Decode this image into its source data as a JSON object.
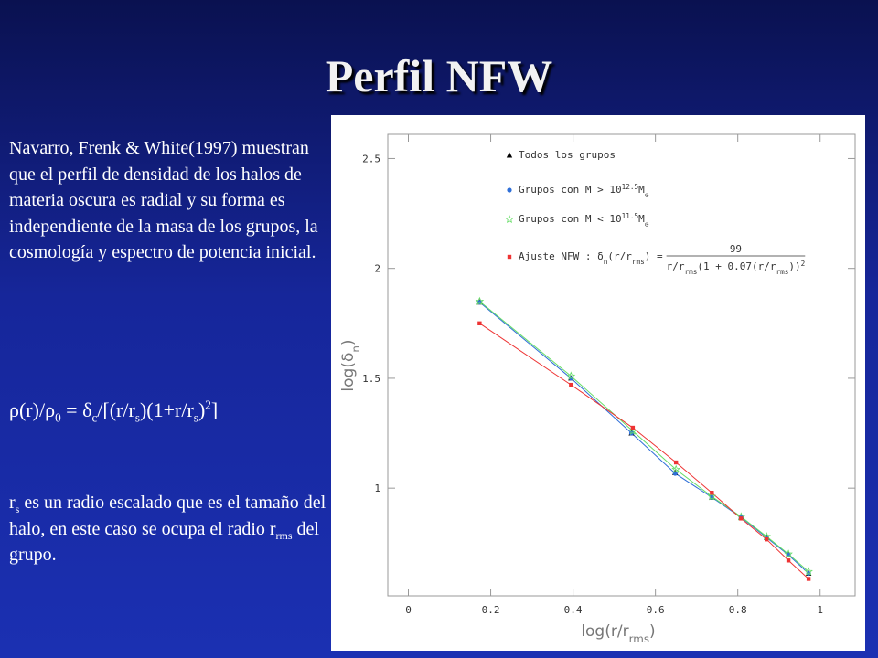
{
  "slide": {
    "title": "Perfil NFW",
    "paragraph": "Navarro, Frenk & White(1997) muestran que el perfil de densidad de los halos de materia oscura es radial y su forma es independiente de la masa de los grupos, la cosmología y espectro de potencia inicial.",
    "formula": [
      {
        "text": "ρ(r)/ρ"
      },
      {
        "text": "0",
        "pos": "sub"
      },
      {
        "text": " = δ"
      },
      {
        "text": "c",
        "pos": "sub"
      },
      {
        "text": "/[(r/r"
      },
      {
        "text": "s",
        "pos": "sub"
      },
      {
        "text": ")(1+r/r"
      },
      {
        "text": "s",
        "pos": "sub"
      },
      {
        "text": ")"
      },
      {
        "text": "2",
        "pos": "sup"
      },
      {
        "text": "]"
      }
    ],
    "note": [
      {
        "text": "r"
      },
      {
        "text": "s",
        "pos": "sub"
      },
      {
        "text": " es un radio escalado que  es el tamaño del halo, en este caso se ocupa el radio r"
      },
      {
        "text": "rms",
        "pos": "sub"
      },
      {
        "text": " del grupo."
      }
    ]
  },
  "chart_data": {
    "type": "scatter-line",
    "xlabel": [
      {
        "text": "log(r/r"
      },
      {
        "text": "rms",
        "pos": "sub"
      },
      {
        "text": ")"
      }
    ],
    "ylabel": [
      {
        "text": "log(δ"
      },
      {
        "text": "n",
        "pos": "sub"
      },
      {
        "text": ")"
      }
    ],
    "xlim": [
      -0.05,
      1.085
    ],
    "ylim": [
      0.51,
      2.61
    ],
    "xticks": [
      0,
      0.2,
      0.4,
      0.6,
      0.8,
      1
    ],
    "yticks": [
      1,
      1.5,
      2,
      2.5
    ],
    "series": [
      {
        "name": [
          {
            "text": "Todos los grupos"
          }
        ],
        "color": "#000000",
        "marker": "triangle",
        "line": false,
        "x": [
          0.173,
          0.395,
          0.542,
          0.648,
          0.737,
          0.808,
          0.87,
          0.923,
          0.972
        ],
        "values": [
          1.846,
          1.5,
          1.25,
          1.07,
          0.958,
          0.867,
          0.775,
          0.696,
          0.612
        ]
      },
      {
        "name": [
          {
            "text": "Grupos con M > 10"
          },
          {
            "text": "12.5",
            "pos": "sup"
          },
          {
            "text": "M"
          },
          {
            "text": "⊙",
            "pos": "sub"
          }
        ],
        "color": "#2f6fd8",
        "marker": "circle",
        "line": true,
        "x": [
          0.173,
          0.395,
          0.542,
          0.648,
          0.737,
          0.808,
          0.87,
          0.923,
          0.972
        ],
        "values": [
          1.846,
          1.5,
          1.25,
          1.067,
          0.958,
          0.867,
          0.775,
          0.696,
          0.612
        ]
      },
      {
        "name": [
          {
            "text": "Grupos con M < 10"
          },
          {
            "text": "11.5",
            "pos": "sup"
          },
          {
            "text": "M"
          },
          {
            "text": "⊙",
            "pos": "sub"
          }
        ],
        "color": "#66dd66",
        "marker": "star",
        "line": true,
        "x": [
          0.173,
          0.395,
          0.545,
          0.65,
          0.737,
          0.808,
          0.87,
          0.923,
          0.972
        ],
        "values": [
          1.85,
          1.51,
          1.26,
          1.085,
          0.962,
          0.87,
          0.78,
          0.7,
          0.62
        ]
      },
      {
        "name": [
          {
            "text": "Ajuste NFW : δ"
          },
          {
            "text": "n",
            "pos": "sub"
          },
          {
            "text": "(r/r"
          },
          {
            "text": "rms",
            "pos": "sub"
          },
          {
            "text": ") = "
          },
          {
            "text": "99",
            "pos": "num"
          },
          {
            "text": "r/r"
          },
          {
            "text": "rms",
            "pos": "sub"
          },
          {
            "text": "(1 + 0.07(r/r"
          },
          {
            "text": "rms",
            "pos": "sub"
          },
          {
            "text": "))"
          },
          {
            "text": "2",
            "pos": "sup"
          }
        ],
        "color": "#ee3333",
        "marker": "square",
        "line": true,
        "x": [
          0.173,
          0.395,
          0.545,
          0.65,
          0.737,
          0.808,
          0.87,
          0.923,
          0.972
        ],
        "values": [
          1.75,
          1.47,
          1.275,
          1.117,
          0.979,
          0.862,
          0.767,
          0.671,
          0.587
        ]
      }
    ]
  }
}
